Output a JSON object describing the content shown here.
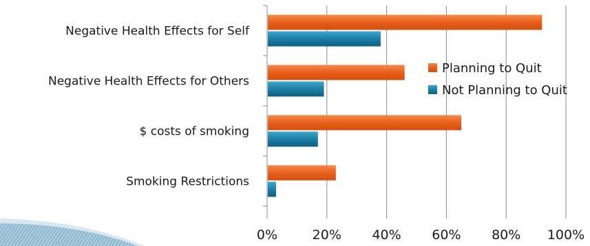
{
  "chart_data": {
    "type": "bar",
    "orientation": "horizontal",
    "categories": [
      "Negative Health Effects for Self",
      "Negative Health Effects for Others",
      "$ costs of smoking",
      "Smoking Restrictions"
    ],
    "series": [
      {
        "name": "Planning to Quit",
        "values": [
          92,
          46,
          65,
          23
        ],
        "color": "#E8601C"
      },
      {
        "name": "Not Planning to Quit",
        "values": [
          38,
          19,
          17,
          3
        ],
        "color": "#1B7FA6"
      }
    ],
    "xlim": [
      0,
      100
    ],
    "x_ticks": [
      "0%",
      "20%",
      "40%",
      "60%",
      "80%",
      "100%"
    ],
    "x_ticks_values": [
      0,
      20,
      40,
      60,
      80,
      100
    ],
    "grid": "vertical",
    "legend_position": "right"
  }
}
